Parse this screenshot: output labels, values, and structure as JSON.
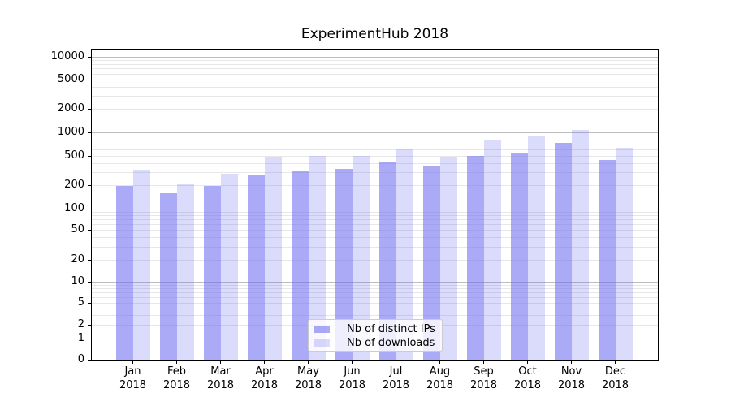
{
  "figure": {
    "title": "ExperimentHub 2018"
  },
  "chart_data": {
    "type": "bar",
    "title": "ExperimentHub 2018",
    "xlabel": "",
    "ylabel": "",
    "categories": [
      "Jan",
      "Feb",
      "Mar",
      "Apr",
      "May",
      "Jun",
      "Jul",
      "Aug",
      "Sep",
      "Oct",
      "Nov",
      "Dec"
    ],
    "category_year": "2018",
    "series": [
      {
        "name": "Nb of distinct IPs",
        "fill": "rgba(105,105,240,0.57)",
        "values": [
          194,
          157,
          194,
          276,
          308,
          335,
          408,
          356,
          505,
          537,
          738,
          437
        ]
      },
      {
        "name": "Nb of downloads",
        "fill": "rgba(105,105,240,0.24)",
        "values": [
          325,
          210,
          286,
          484,
          503,
          506,
          620,
          484,
          793,
          915,
          1074,
          635
        ]
      }
    ],
    "y_axis": {
      "scale": "symlog",
      "tick_labels": [
        "0",
        "1",
        "2",
        "5",
        "10",
        "20",
        "50",
        "100",
        "200",
        "500",
        "1000",
        "2000",
        "5000",
        "10000"
      ],
      "tick_values": [
        0,
        1,
        2,
        5,
        10,
        20,
        50,
        100,
        200,
        500,
        1000,
        2000,
        5000,
        10000
      ],
      "range_top": 12500
    },
    "grid": {
      "orientation": "horizontal",
      "major_values": [
        1,
        10,
        100,
        1000,
        10000
      ],
      "major_color": "#bdbdbd",
      "minor_color": "#e7e7e7"
    },
    "legend": {
      "position": "lower center",
      "entries": [
        "Nb of distinct IPs",
        "Nb of downloads"
      ]
    }
  }
}
